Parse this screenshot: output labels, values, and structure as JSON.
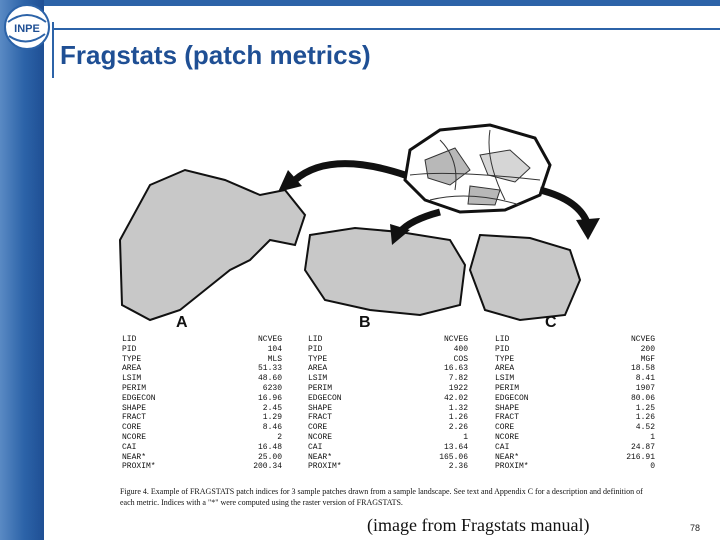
{
  "slide": {
    "logo_text": "INPE",
    "title": "Fragstats (patch metrics)",
    "credit": "(image from Fragstats manual)",
    "page_number": "78"
  },
  "figure": {
    "labels": {
      "a": "A",
      "b": "B",
      "c": "C"
    },
    "caption": "Figure 4. Example of FRAGSTATS patch indices for 3 sample patches drawn from a sample landscape. See text and Appendix C for a description and definition of each metric. Indices with a \"*\" were computed using the raster version of FRAGSTATS.",
    "panels": [
      {
        "rows": [
          {
            "k": "LID",
            "v": "NCVEG"
          },
          {
            "k": "PID",
            "v": "104"
          },
          {
            "k": "TYPE",
            "v": "MLS"
          },
          {
            "k": "AREA",
            "v": "51.33"
          },
          {
            "k": "LSIM",
            "v": "48.60"
          },
          {
            "k": "PERIM",
            "v": "6230"
          },
          {
            "k": "EDGECON",
            "v": "16.96"
          },
          {
            "k": "SHAPE",
            "v": "2.45"
          },
          {
            "k": "FRACT",
            "v": "1.29"
          },
          {
            "k": "CORE",
            "v": "8.46"
          },
          {
            "k": "NCORE",
            "v": "2"
          },
          {
            "k": "CAI",
            "v": "16.48"
          },
          {
            "k": "NEAR*",
            "v": "25.00"
          },
          {
            "k": "PROXIM*",
            "v": "200.34"
          }
        ]
      },
      {
        "rows": [
          {
            "k": "LID",
            "v": "NCVEG"
          },
          {
            "k": "PID",
            "v": "400"
          },
          {
            "k": "TYPE",
            "v": "COS"
          },
          {
            "k": "AREA",
            "v": "16.63"
          },
          {
            "k": "LSIM",
            "v": "7.82"
          },
          {
            "k": "PERIM",
            "v": "1922"
          },
          {
            "k": "EDGECON",
            "v": "42.02"
          },
          {
            "k": "SHAPE",
            "v": "1.32"
          },
          {
            "k": "FRACT",
            "v": "1.26"
          },
          {
            "k": "CORE",
            "v": "2.26"
          },
          {
            "k": "NCORE",
            "v": "1"
          },
          {
            "k": "CAI",
            "v": "13.64"
          },
          {
            "k": "NEAR*",
            "v": "165.06"
          },
          {
            "k": "PROXIM*",
            "v": "2.36"
          }
        ]
      },
      {
        "rows": [
          {
            "k": "LID",
            "v": "NCVEG"
          },
          {
            "k": "PID",
            "v": "200"
          },
          {
            "k": "TYPE",
            "v": "MGF"
          },
          {
            "k": "AREA",
            "v": "18.58"
          },
          {
            "k": "LSIM",
            "v": "8.41"
          },
          {
            "k": "PERIM",
            "v": "1907"
          },
          {
            "k": "EDGECON",
            "v": "80.06"
          },
          {
            "k": "SHAPE",
            "v": "1.25"
          },
          {
            "k": "FRACT",
            "v": "1.26"
          },
          {
            "k": "CORE",
            "v": "4.52"
          },
          {
            "k": "NCORE",
            "v": "1"
          },
          {
            "k": "CAI",
            "v": "24.87"
          },
          {
            "k": "NEAR*",
            "v": "216.91"
          },
          {
            "k": "PROXIM*",
            "v": "0"
          }
        ]
      }
    ]
  }
}
